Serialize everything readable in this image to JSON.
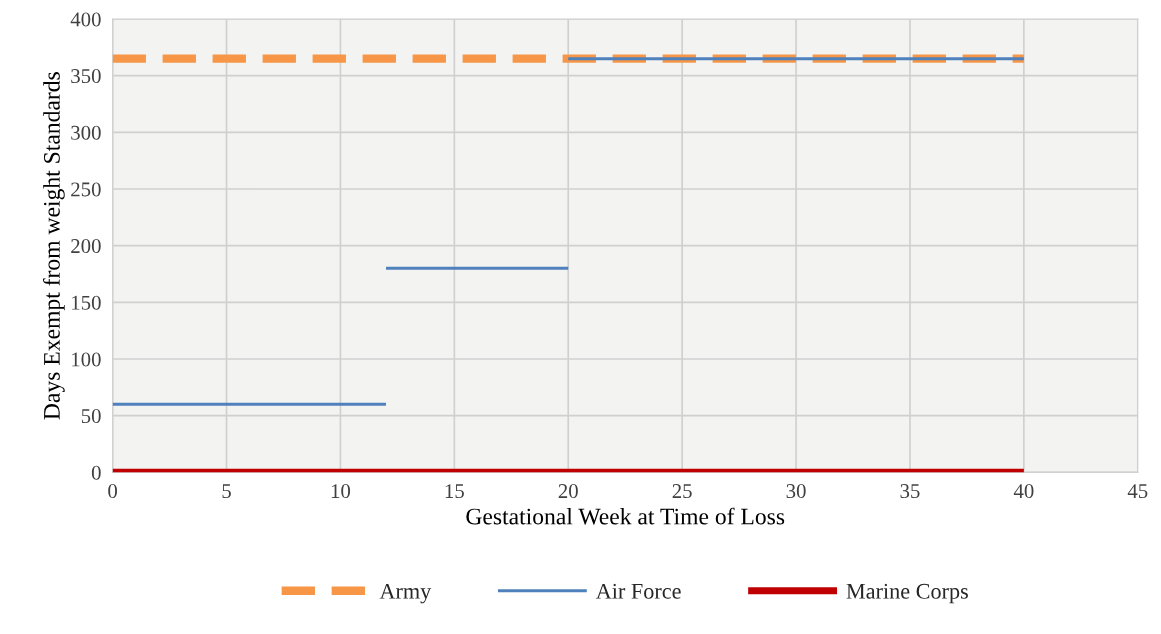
{
  "chart_data": {
    "type": "line",
    "xlabel": "Gestational Week at Time of Loss",
    "ylabel": "Days Exempt from weight Standards",
    "series": [
      {
        "name": "Army",
        "color": "#f79646",
        "x": [
          0,
          40
        ],
        "values": [
          365,
          365
        ],
        "line_style": "dashed"
      },
      {
        "name": "Air Force",
        "color": "#4f81bd",
        "x": [
          0,
          12
        ],
        "values": [
          60,
          60
        ],
        "line_style": "solid"
      },
      {
        "color": "#4f81bd",
        "x": [
          12,
          20
        ],
        "values": [
          180,
          180
        ],
        "line_style": "solid"
      },
      {
        "color": "#4f81bd",
        "x": [
          20,
          40
        ],
        "values": [
          365,
          365
        ],
        "line_style": "solid"
      },
      {
        "name": "Marine Corps",
        "color": "#c00000",
        "x": [
          0,
          40
        ],
        "values": [
          0,
          0
        ],
        "line_style": "solid"
      }
    ],
    "xlim": [
      0,
      45
    ],
    "xticks": [
      0,
      5,
      10,
      15,
      20,
      25,
      30,
      35,
      40,
      45
    ],
    "ylim": [
      0,
      400
    ],
    "yticks": [
      0,
      50,
      100,
      150,
      200,
      250,
      300,
      350,
      400
    ],
    "grid": true,
    "legend": "bottom",
    "marker": "none"
  }
}
